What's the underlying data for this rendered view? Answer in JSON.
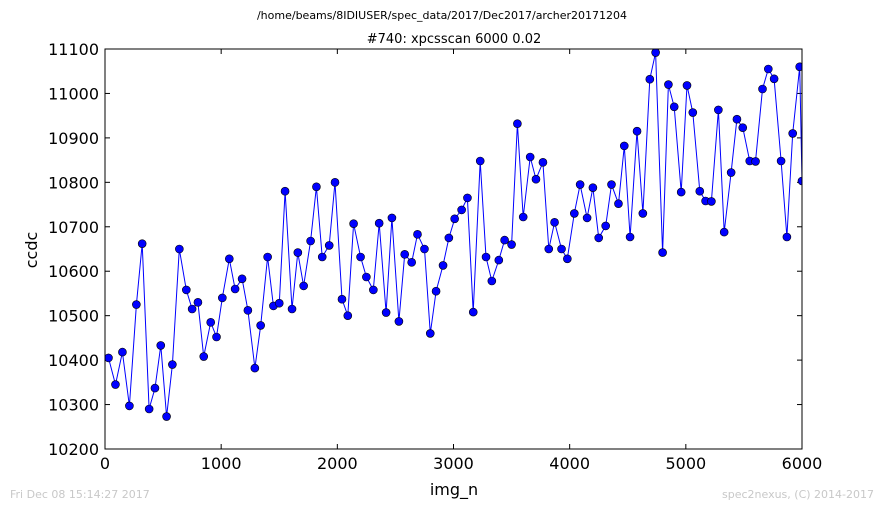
{
  "chart_data": {
    "type": "line",
    "suptitle": "/home/beams/8IDIUSER/spec_data/2017/Dec2017/archer20171204",
    "title": "#740: xpcsscan 6000 0.02",
    "xlabel": "img_n",
    "ylabel": "ccdc",
    "xlim": [
      0,
      6000
    ],
    "ylim": [
      10200,
      11100
    ],
    "xticks": [
      0,
      1000,
      2000,
      3000,
      4000,
      5000,
      6000
    ],
    "yticks": [
      10200,
      10300,
      10400,
      10500,
      10600,
      10700,
      10800,
      10900,
      11000,
      11100
    ],
    "grid": false,
    "line_color": "#0000ff",
    "series": [
      {
        "x": [
          30,
          90,
          150,
          210,
          270,
          320,
          380,
          430,
          480,
          530,
          580,
          640,
          700,
          750,
          800,
          850,
          910,
          960,
          1010,
          1070,
          1120,
          1180,
          1230,
          1290,
          1340,
          1400,
          1450,
          1500,
          1550,
          1610,
          1660,
          1710,
          1770,
          1820,
          1870,
          1930,
          1980,
          2040,
          2090,
          2140,
          2200,
          2250,
          2310,
          2360,
          2420,
          2470,
          2530,
          2580,
          2640,
          2690,
          2750,
          2800,
          2850,
          2910,
          2960,
          3010,
          3070,
          3120,
          3170,
          3230,
          3280,
          3330,
          3390,
          3440,
          3500,
          3550,
          3600,
          3660,
          3710,
          3770,
          3820,
          3870,
          3930,
          3980,
          4040,
          4090,
          4150,
          4200,
          4250,
          4310,
          4360,
          4420,
          4470,
          4520,
          4580,
          4630,
          4690,
          4740,
          4800,
          4850,
          4900,
          4960,
          5010,
          5060,
          5120,
          5170,
          5220,
          5280,
          5330,
          5390,
          5440,
          5490,
          5550,
          5600,
          5660,
          5710,
          5760,
          5820,
          5870,
          5920,
          5980,
          6000
        ],
        "y": [
          10405,
          10345,
          10418,
          10297,
          10525,
          10662,
          10290,
          10337,
          10433,
          10273,
          10390,
          10650,
          10558,
          10515,
          10530,
          10408,
          10485,
          10452,
          10540,
          10628,
          10560,
          10583,
          10512,
          10382,
          10478,
          10632,
          10522,
          10528,
          10780,
          10515,
          10642,
          10567,
          10668,
          10790,
          10632,
          10658,
          10800,
          10537,
          10500,
          10707,
          10632,
          10587,
          10558,
          10708,
          10507,
          10720,
          10487,
          10638,
          10620,
          10683,
          10650,
          10460,
          10555,
          10613,
          10675,
          10718,
          10738,
          10765,
          10508,
          10848,
          10632,
          10578,
          10625,
          10670,
          10660,
          10932,
          10722,
          10857,
          10807,
          10845,
          10650,
          10710,
          10650,
          10628,
          10730,
          10795,
          10720,
          10788,
          10675,
          10702,
          10795,
          10752,
          10882,
          10677,
          10915,
          10730,
          11032,
          11092,
          10642,
          11020,
          10970,
          10778,
          11018,
          10957,
          10780,
          10758,
          10757,
          10963,
          10688,
          10822,
          10942,
          10923,
          10848,
          10847,
          11010,
          11055,
          11033,
          10848,
          10677,
          10910,
          11060,
          10803
        ]
      }
    ],
    "footer_left": "Fri Dec 08 15:14:27 2017",
    "footer_right": "spec2nexus, (C) 2014-2017"
  }
}
